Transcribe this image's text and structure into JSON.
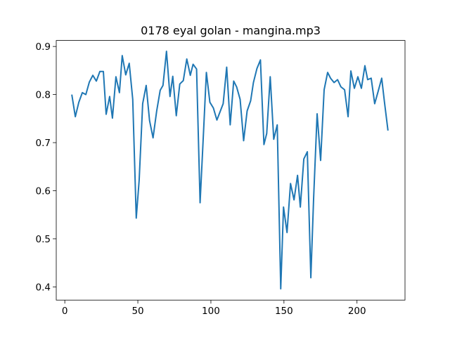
{
  "chart_data": {
    "type": "line",
    "title": "0178 eyal golan - mangina.mp3",
    "color": "#1f77b4",
    "x": [
      4.8,
      7.2,
      9.6,
      12,
      14.4,
      16.8,
      19.2,
      21.6,
      24,
      26.4,
      28.3,
      30.7,
      32.6,
      35,
      37.4,
      39.3,
      41.7,
      44.1,
      46.5,
      48.9,
      50.9,
      53.3,
      55.7,
      58,
      60.4,
      62.9,
      65.3,
      67.2,
      69.6,
      72,
      73.9,
      76.3,
      78.7,
      81.1,
      83.5,
      85.9,
      87.8,
      90.2,
      92.6,
      95,
      96.9,
      99.3,
      101.7,
      104.1,
      106.5,
      108.4,
      110.8,
      113.2,
      115.6,
      117.6,
      120,
      122.4,
      124.8,
      127.2,
      129.1,
      131.5,
      133.9,
      136.3,
      138.2,
      140.6,
      143,
      145.4,
      147.8,
      149.7,
      152.1,
      154.5,
      156.9,
      159.3,
      161.2,
      163.6,
      166,
      168.4,
      170.3,
      172.7,
      175.1,
      177.5,
      179.9,
      181.9,
      184.3,
      186.7,
      189,
      191.5,
      193.9,
      195.8,
      198.2,
      200.6,
      203,
      205.4,
      207.3,
      209.7,
      212.1,
      214.5,
      216.9,
      218.8,
      221.2
    ],
    "values": [
      0.8,
      0.754,
      0.784,
      0.804,
      0.8,
      0.826,
      0.84,
      0.828,
      0.848,
      0.848,
      0.759,
      0.796,
      0.751,
      0.837,
      0.804,
      0.881,
      0.841,
      0.865,
      0.79,
      0.543,
      0.622,
      0.781,
      0.819,
      0.746,
      0.71,
      0.766,
      0.809,
      0.819,
      0.89,
      0.796,
      0.838,
      0.756,
      0.822,
      0.829,
      0.874,
      0.84,
      0.863,
      0.853,
      0.575,
      0.725,
      0.846,
      0.784,
      0.772,
      0.747,
      0.766,
      0.781,
      0.857,
      0.737,
      0.828,
      0.816,
      0.79,
      0.704,
      0.766,
      0.787,
      0.825,
      0.854,
      0.872,
      0.696,
      0.719,
      0.837,
      0.707,
      0.737,
      0.396,
      0.566,
      0.513,
      0.615,
      0.581,
      0.632,
      0.566,
      0.666,
      0.681,
      0.419,
      0.584,
      0.76,
      0.663,
      0.81,
      0.846,
      0.834,
      0.825,
      0.831,
      0.816,
      0.81,
      0.754,
      0.849,
      0.813,
      0.837,
      0.813,
      0.86,
      0.831,
      0.834,
      0.781,
      0.807,
      0.834,
      0.784,
      0.725
    ],
    "xlim": [
      -5.85,
      232.85
    ],
    "xticks": [
      0,
      50,
      100,
      150,
      200
    ],
    "ylim": [
      0.3725,
      0.9125
    ],
    "yticks": [
      0.4,
      0.5,
      0.6,
      0.7,
      0.8,
      0.9
    ]
  }
}
